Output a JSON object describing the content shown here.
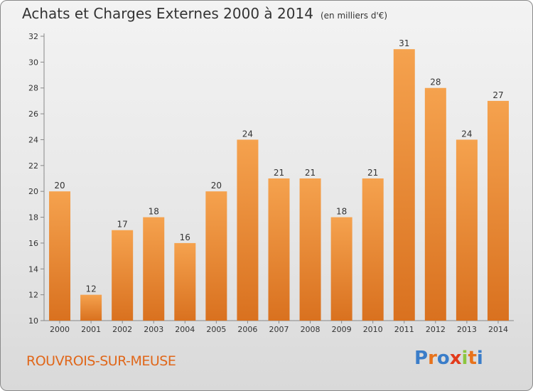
{
  "title": "Achats et Charges Externes 2000 à 2014",
  "subtitle": "(en milliers d'€)",
  "commune": "ROUVROIS-SUR-MEUSE",
  "logo_text": "Proxiti",
  "colors": {
    "bar_light": "#f5a24e",
    "bar_dark": "#d9711f",
    "commune_text": "#e0671a",
    "logo_letters": [
      "#3a7dc9",
      "#e8731c",
      "#3a7dc9",
      "#e23b1c",
      "#8cc63f",
      "#e8731c",
      "#3a7dc9"
    ]
  },
  "chart_data": {
    "type": "bar",
    "title": "Achats et Charges Externes 2000 à 2014",
    "xlabel": "",
    "ylabel": "",
    "categories": [
      "2000",
      "2001",
      "2002",
      "2003",
      "2004",
      "2005",
      "2006",
      "2007",
      "2008",
      "2009",
      "2010",
      "2011",
      "2012",
      "2013",
      "2014"
    ],
    "values": [
      20,
      12,
      17,
      18,
      16,
      20,
      24,
      21,
      21,
      18,
      21,
      31,
      28,
      24,
      27
    ],
    "ylim": [
      10,
      32
    ],
    "yticks": [
      10,
      12,
      14,
      16,
      18,
      20,
      22,
      24,
      26,
      28,
      30,
      32
    ],
    "grid": false,
    "data_labels": true
  }
}
